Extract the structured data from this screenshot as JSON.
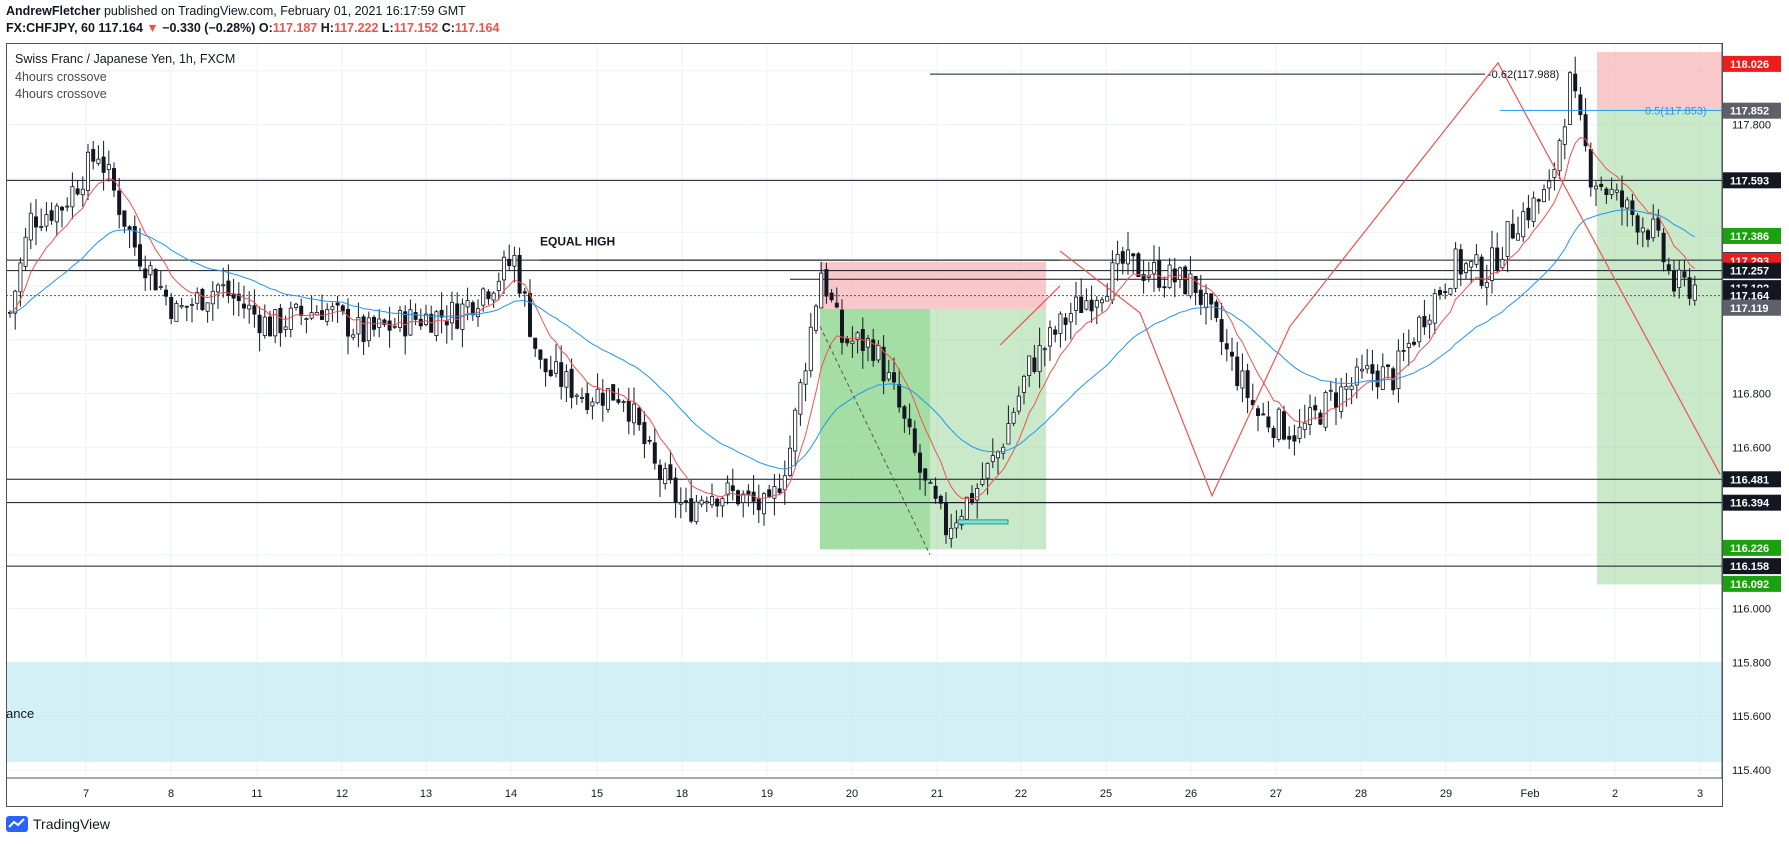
{
  "header": {
    "publisher": "AndrewFletcher",
    "published_text": "published on TradingView.com, February 01, 2021 16:17:59 GMT",
    "symbol_line": "FX:CHFJPY, 60",
    "last": "117.164",
    "change_arrow": "▼",
    "change": "−0.330 (−0.28%)",
    "o_label": "O:",
    "o_value": "117.187",
    "h_label": "H:",
    "h_value": "117.222",
    "l_label": "L:",
    "l_value": "117.152",
    "c_label": "C:",
    "c_value": "117.164"
  },
  "legend": {
    "title": "Swiss Franc / Japanese Yen, 1h, FXCM",
    "indicator_1": "4hours crossove",
    "indicator_2": "4hours crossove"
  },
  "annotations": {
    "equal_high": "EQUAL HIGH",
    "zone_label": "ance",
    "fib_top": "-0.62(117.988)",
    "fib_mid": "0.5(117.853)"
  },
  "branding": {
    "logo_text": "TradingView"
  },
  "colors": {
    "up": "#ffffff",
    "down": "#131722",
    "ema_fast": "#ef5350",
    "ema_slow": "#2196f3",
    "stop_zone": "#f7b6ba",
    "target_zone": "#a5dba5",
    "support_zone": "#bfeaf2",
    "price_tag_black": "#131722",
    "price_tag_red": "#ef1c1c",
    "price_tag_green": "#1ba10f",
    "price_tag_gray": "#5d606b"
  },
  "chart_data": {
    "type": "candlestick",
    "instrument": "CHFJPY",
    "timeframe": "1h",
    "x_ticks": [
      "7",
      "8",
      "11",
      "12",
      "13",
      "14",
      "15",
      "18",
      "19",
      "20",
      "21",
      "22",
      "25",
      "26",
      "27",
      "28",
      "29",
      "Feb",
      "2",
      "3"
    ],
    "y_ticks": [
      "117.800",
      "116.800",
      "116.600",
      "116.000",
      "115.800",
      "115.600",
      "115.400"
    ],
    "ylim": [
      115.4,
      118.1
    ],
    "anchor_path": [
      [
        0,
        117.1
      ],
      [
        4,
        117.45
      ],
      [
        10,
        117.5
      ],
      [
        17,
        117.7
      ],
      [
        24,
        117.35
      ],
      [
        32,
        117.1
      ],
      [
        40,
        117.2
      ],
      [
        50,
        117.05
      ],
      [
        60,
        117.12
      ],
      [
        68,
        117.02
      ],
      [
        78,
        117.08
      ],
      [
        86,
        117.1
      ],
      [
        93,
        117.22
      ],
      [
        97,
        117.3
      ],
      [
        102,
        116.9
      ],
      [
        110,
        116.8
      ],
      [
        118,
        116.8
      ],
      [
        124,
        116.52
      ],
      [
        130,
        116.36
      ],
      [
        134,
        116.44
      ],
      [
        140,
        116.42
      ],
      [
        146,
        116.36
      ],
      [
        150,
        116.6
      ],
      [
        156,
        117.26
      ],
      [
        160,
        117.0
      ],
      [
        166,
        116.98
      ],
      [
        170,
        116.8
      ],
      [
        176,
        116.45
      ],
      [
        180,
        116.3
      ],
      [
        186,
        116.45
      ],
      [
        190,
        116.58
      ],
      [
        196,
        116.9
      ],
      [
        204,
        117.1
      ],
      [
        210,
        117.2
      ],
      [
        214,
        117.28
      ],
      [
        220,
        117.25
      ],
      [
        228,
        117.2
      ],
      [
        234,
        116.95
      ],
      [
        240,
        116.72
      ],
      [
        248,
        116.65
      ],
      [
        254,
        116.78
      ],
      [
        262,
        116.88
      ],
      [
        266,
        116.86
      ],
      [
        272,
        117.1
      ],
      [
        278,
        117.28
      ],
      [
        284,
        117.25
      ],
      [
        290,
        117.45
      ],
      [
        296,
        117.55
      ],
      [
        300,
        117.95
      ],
      [
        304,
        117.62
      ],
      [
        310,
        117.5
      ],
      [
        316,
        117.4
      ],
      [
        320,
        117.2
      ],
      [
        324,
        117.2
      ]
    ],
    "horizontal_levels": [
      {
        "price": 117.593,
        "label": "117.593",
        "tag": "black"
      },
      {
        "price": 117.296,
        "label": "117.296",
        "tag": "black"
      },
      {
        "price": 117.257,
        "label": "117.257",
        "tag": "black"
      },
      {
        "price": 116.481,
        "label": "116.481",
        "tag": "black"
      },
      {
        "price": 116.394,
        "label": "116.394",
        "tag": "black"
      },
      {
        "price": 116.158,
        "label": "116.158",
        "tag": "black"
      }
    ],
    "price_tags": [
      {
        "price": 118.026,
        "label": "118.026",
        "tag": "red"
      },
      {
        "price": 117.852,
        "label": "117.852",
        "tag": "gray"
      },
      {
        "price": 117.593,
        "label": "117.593",
        "tag": "black"
      },
      {
        "price": 117.386,
        "label": "117.386",
        "tag": "green"
      },
      {
        "price": 117.296,
        "label": "117.296",
        "tag": "black"
      },
      {
        "price": 117.293,
        "label": "117.293",
        "tag": "red"
      },
      {
        "price": 117.257,
        "label": "117.257",
        "tag": "black"
      },
      {
        "price": 117.192,
        "label": "117.192",
        "tag": "black"
      },
      {
        "price": 117.164,
        "label": "117.164",
        "tag": "black"
      },
      {
        "price": 117.119,
        "label": "117.119",
        "tag": "gray"
      },
      {
        "price": 116.481,
        "label": "116.481",
        "tag": "black"
      },
      {
        "price": 116.394,
        "label": "116.394",
        "tag": "black"
      },
      {
        "price": 116.226,
        "label": "116.226",
        "tag": "green"
      },
      {
        "price": 116.158,
        "label": "116.158",
        "tag": "black"
      },
      {
        "price": 116.092,
        "label": "116.092",
        "tag": "green"
      }
    ]
  }
}
